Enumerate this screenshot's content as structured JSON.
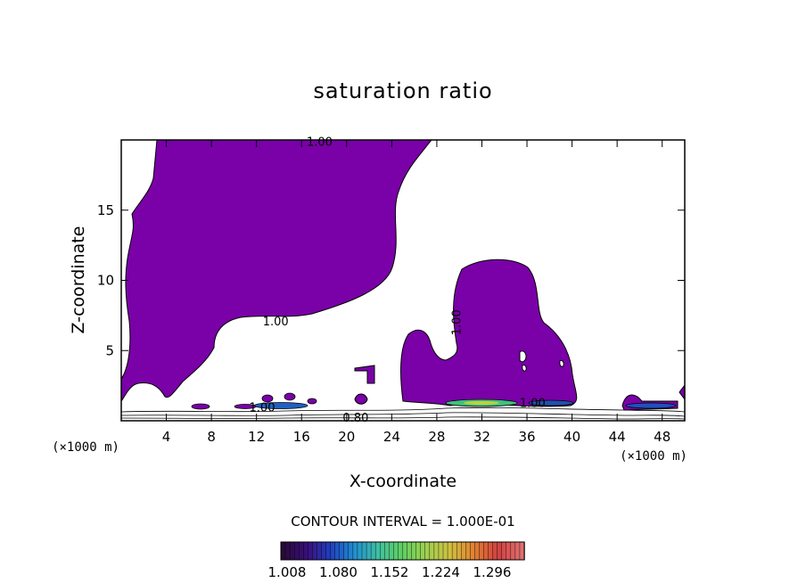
{
  "chart_data": {
    "type": "contour",
    "title": "saturation ratio",
    "xlabel": "X-coordinate",
    "ylabel": "Z-coordinate",
    "x_unit": "(×1000 m)",
    "z_unit": "(×1000 m)",
    "xlim": [
      0,
      50
    ],
    "ylim": [
      0,
      20
    ],
    "x_ticks": [
      4,
      8,
      12,
      16,
      20,
      24,
      28,
      32,
      36,
      40,
      44,
      48
    ],
    "y_ticks": [
      5,
      10,
      15
    ],
    "contour_labels": [
      {
        "text": "1.00",
        "x": 17.6,
        "y": 19.9
      },
      {
        "text": "1.00",
        "x": 13.7,
        "y": 7.1
      },
      {
        "text": "1.00",
        "x": 29.7,
        "y": 7.0
      },
      {
        "text": "1.00",
        "x": 12.5,
        "y": 1.0
      },
      {
        "text": "1.00",
        "x": 36.5,
        "y": 1.3
      },
      {
        "text": "0.80",
        "x": 20.8,
        "y": 0.25
      }
    ],
    "contour_interval_text": "CONTOUR INTERVAL = 1.000E-01",
    "colorbar": {
      "labels": [
        "1.008",
        "1.080",
        "1.152",
        "1.224",
        "1.296"
      ],
      "range": [
        1.0,
        1.33
      ],
      "colors": [
        "#2a0a3a",
        "#3a0f7a",
        "#2040c0",
        "#2090d0",
        "#40c0a0",
        "#60d060",
        "#a0d050",
        "#d0c040",
        "#e08030",
        "#d04040",
        "#e07070"
      ]
    },
    "fill_color_level_1": "#7a00a8"
  }
}
